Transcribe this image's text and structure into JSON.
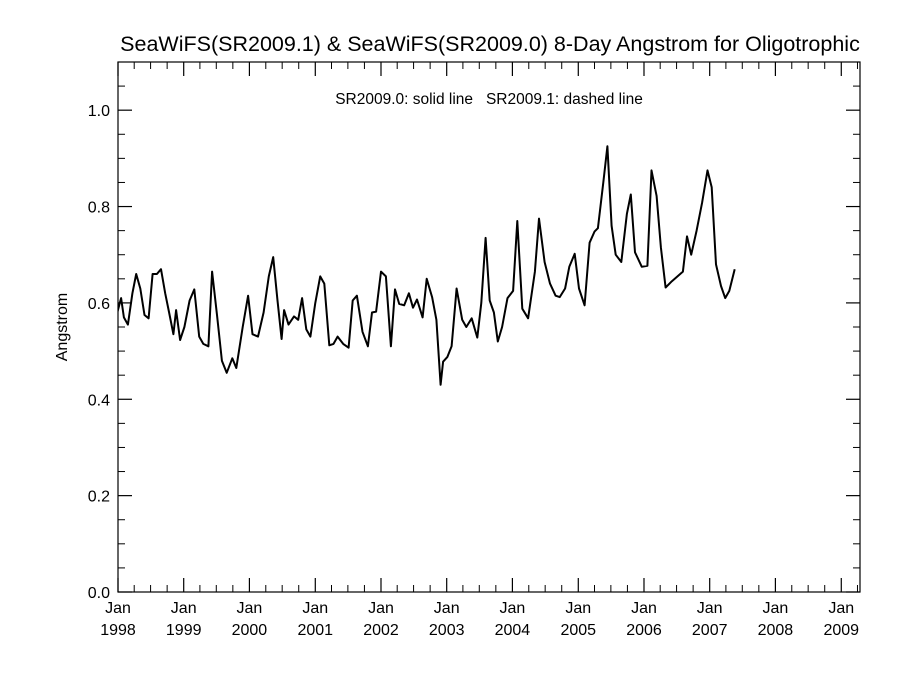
{
  "chart_data": {
    "type": "line",
    "title": "SeaWiFS(SR2009.1) & SeaWiFS(SR2009.0) 8-Day Angstrom for Oligotrophic",
    "annotation": "SR2009.0: solid line   SR2009.1: dashed line",
    "xlabel": "",
    "ylabel": "Angstrom",
    "xlim": [
      "1998-01-01",
      "2009-04-15"
    ],
    "ylim": [
      0.0,
      1.1
    ],
    "grid": false,
    "line_color": "#000000",
    "x_ticks": [
      {
        "month": "Jan",
        "year": "1998",
        "date": "1998-01-01"
      },
      {
        "month": "Jan",
        "year": "1999",
        "date": "1999-01-01"
      },
      {
        "month": "Jan",
        "year": "2000",
        "date": "2000-01-01"
      },
      {
        "month": "Jan",
        "year": "2001",
        "date": "2001-01-01"
      },
      {
        "month": "Jan",
        "year": "2002",
        "date": "2002-01-01"
      },
      {
        "month": "Jan",
        "year": "2003",
        "date": "2003-01-01"
      },
      {
        "month": "Jan",
        "year": "2004",
        "date": "2004-01-01"
      },
      {
        "month": "Jan",
        "year": "2005",
        "date": "2005-01-01"
      },
      {
        "month": "Jan",
        "year": "2006",
        "date": "2006-01-01"
      },
      {
        "month": "Jan",
        "year": "2007",
        "date": "2007-01-01"
      },
      {
        "month": "Jan",
        "year": "2008",
        "date": "2008-01-01"
      },
      {
        "month": "Jan",
        "year": "2009",
        "date": "2009-01-01"
      }
    ],
    "y_ticks": [
      "0.0",
      "0.2",
      "0.4",
      "0.6",
      "0.8",
      "1.0"
    ],
    "series": [
      {
        "style": "solid",
        "points": [
          [
            "1997-12-28",
            0.58
          ],
          [
            "1998-01-18",
            0.61
          ],
          [
            "1998-02-03",
            0.57
          ],
          [
            "1998-02-25",
            0.555
          ],
          [
            "1998-03-22",
            0.62
          ],
          [
            "1998-04-12",
            0.66
          ],
          [
            "1998-05-05",
            0.63
          ],
          [
            "1998-05-28",
            0.575
          ],
          [
            "1998-06-20",
            0.568
          ],
          [
            "1998-07-12",
            0.66
          ],
          [
            "1998-08-05",
            0.66
          ],
          [
            "1998-08-28",
            0.67
          ],
          [
            "1998-09-20",
            0.62
          ],
          [
            "1998-10-12",
            0.58
          ],
          [
            "1998-11-05",
            0.535
          ],
          [
            "1998-11-20",
            0.585
          ],
          [
            "1998-12-12",
            0.523
          ],
          [
            "1999-01-05",
            0.55
          ],
          [
            "1999-02-03",
            0.605
          ],
          [
            "1999-03-01",
            0.628
          ],
          [
            "1999-03-28",
            0.53
          ],
          [
            "1999-04-20",
            0.515
          ],
          [
            "1999-05-18",
            0.51
          ],
          [
            "1999-06-08",
            0.665
          ],
          [
            "1999-07-05",
            0.575
          ],
          [
            "1999-08-01",
            0.48
          ],
          [
            "1999-08-28",
            0.455
          ],
          [
            "1999-09-28",
            0.485
          ],
          [
            "1999-10-20",
            0.465
          ],
          [
            "1999-11-25",
            0.55
          ],
          [
            "1999-12-25",
            0.615
          ],
          [
            "2000-01-18",
            0.535
          ],
          [
            "2000-02-18",
            0.53
          ],
          [
            "2000-03-20",
            0.58
          ],
          [
            "2000-04-18",
            0.655
          ],
          [
            "2000-05-12",
            0.695
          ],
          [
            "2000-06-05",
            0.605
          ],
          [
            "2000-06-28",
            0.525
          ],
          [
            "2000-07-12",
            0.585
          ],
          [
            "2000-08-05",
            0.555
          ],
          [
            "2000-09-05",
            0.572
          ],
          [
            "2000-09-28",
            0.565
          ],
          [
            "2000-10-20",
            0.61
          ],
          [
            "2000-11-12",
            0.545
          ],
          [
            "2000-12-05",
            0.53
          ],
          [
            "2001-01-01",
            0.6
          ],
          [
            "2001-01-28",
            0.655
          ],
          [
            "2001-02-20",
            0.64
          ],
          [
            "2001-03-20",
            0.512
          ],
          [
            "2001-04-12",
            0.515
          ],
          [
            "2001-05-05",
            0.53
          ],
          [
            "2001-06-05",
            0.515
          ],
          [
            "2001-07-05",
            0.507
          ],
          [
            "2001-07-28",
            0.605
          ],
          [
            "2001-08-20",
            0.615
          ],
          [
            "2001-09-20",
            0.54
          ],
          [
            "2001-10-20",
            0.51
          ],
          [
            "2001-11-12",
            0.58
          ],
          [
            "2001-12-05",
            0.582
          ],
          [
            "2002-01-01",
            0.665
          ],
          [
            "2002-01-28",
            0.655
          ],
          [
            "2002-02-25",
            0.51
          ],
          [
            "2002-03-20",
            0.628
          ],
          [
            "2002-04-12",
            0.598
          ],
          [
            "2002-05-10",
            0.595
          ],
          [
            "2002-06-05",
            0.62
          ],
          [
            "2002-06-28",
            0.59
          ],
          [
            "2002-07-20",
            0.607
          ],
          [
            "2002-08-20",
            0.57
          ],
          [
            "2002-09-12",
            0.65
          ],
          [
            "2002-10-12",
            0.612
          ],
          [
            "2002-11-05",
            0.565
          ],
          [
            "2002-11-28",
            0.43
          ],
          [
            "2002-12-12",
            0.478
          ],
          [
            "2003-01-05",
            0.488
          ],
          [
            "2003-01-28",
            0.51
          ],
          [
            "2003-02-25",
            0.63
          ],
          [
            "2003-03-28",
            0.565
          ],
          [
            "2003-04-20",
            0.55
          ],
          [
            "2003-05-20",
            0.568
          ],
          [
            "2003-06-20",
            0.528
          ],
          [
            "2003-07-12",
            0.6
          ],
          [
            "2003-08-05",
            0.735
          ],
          [
            "2003-08-28",
            0.605
          ],
          [
            "2003-09-20",
            0.58
          ],
          [
            "2003-10-12",
            0.52
          ],
          [
            "2003-11-05",
            0.55
          ],
          [
            "2003-12-05",
            0.61
          ],
          [
            "2004-01-05",
            0.625
          ],
          [
            "2004-01-28",
            0.77
          ],
          [
            "2004-02-25",
            0.588
          ],
          [
            "2004-03-28",
            0.568
          ],
          [
            "2004-05-05",
            0.665
          ],
          [
            "2004-05-28",
            0.775
          ],
          [
            "2004-06-28",
            0.685
          ],
          [
            "2004-07-28",
            0.64
          ],
          [
            "2004-08-28",
            0.615
          ],
          [
            "2004-09-20",
            0.612
          ],
          [
            "2004-10-20",
            0.63
          ],
          [
            "2004-11-12",
            0.675
          ],
          [
            "2004-12-12",
            0.702
          ],
          [
            "2005-01-05",
            0.63
          ],
          [
            "2005-02-05",
            0.595
          ],
          [
            "2005-03-05",
            0.725
          ],
          [
            "2005-04-01",
            0.748
          ],
          [
            "2005-04-20",
            0.755
          ],
          [
            "2005-05-20",
            0.85
          ],
          [
            "2005-06-12",
            0.925
          ],
          [
            "2005-07-05",
            0.76
          ],
          [
            "2005-07-28",
            0.7
          ],
          [
            "2005-08-28",
            0.685
          ],
          [
            "2005-09-28",
            0.785
          ],
          [
            "2005-10-20",
            0.825
          ],
          [
            "2005-11-12",
            0.705
          ],
          [
            "2005-12-20",
            0.675
          ],
          [
            "2006-01-20",
            0.677
          ],
          [
            "2006-02-12",
            0.875
          ],
          [
            "2006-03-12",
            0.822
          ],
          [
            "2006-04-05",
            0.715
          ],
          [
            "2006-05-01",
            0.632
          ],
          [
            "2006-06-05",
            0.645
          ],
          [
            "2006-08-05",
            0.665
          ],
          [
            "2006-08-28",
            0.738
          ],
          [
            "2006-09-20",
            0.7
          ],
          [
            "2006-10-20",
            0.75
          ],
          [
            "2006-11-20",
            0.808
          ],
          [
            "2006-12-20",
            0.875
          ],
          [
            "2007-01-12",
            0.84
          ],
          [
            "2007-02-05",
            0.68
          ],
          [
            "2007-03-05",
            0.635
          ],
          [
            "2007-03-28",
            0.61
          ],
          [
            "2007-04-20",
            0.625
          ],
          [
            "2007-05-20",
            0.67
          ]
        ]
      }
    ]
  }
}
